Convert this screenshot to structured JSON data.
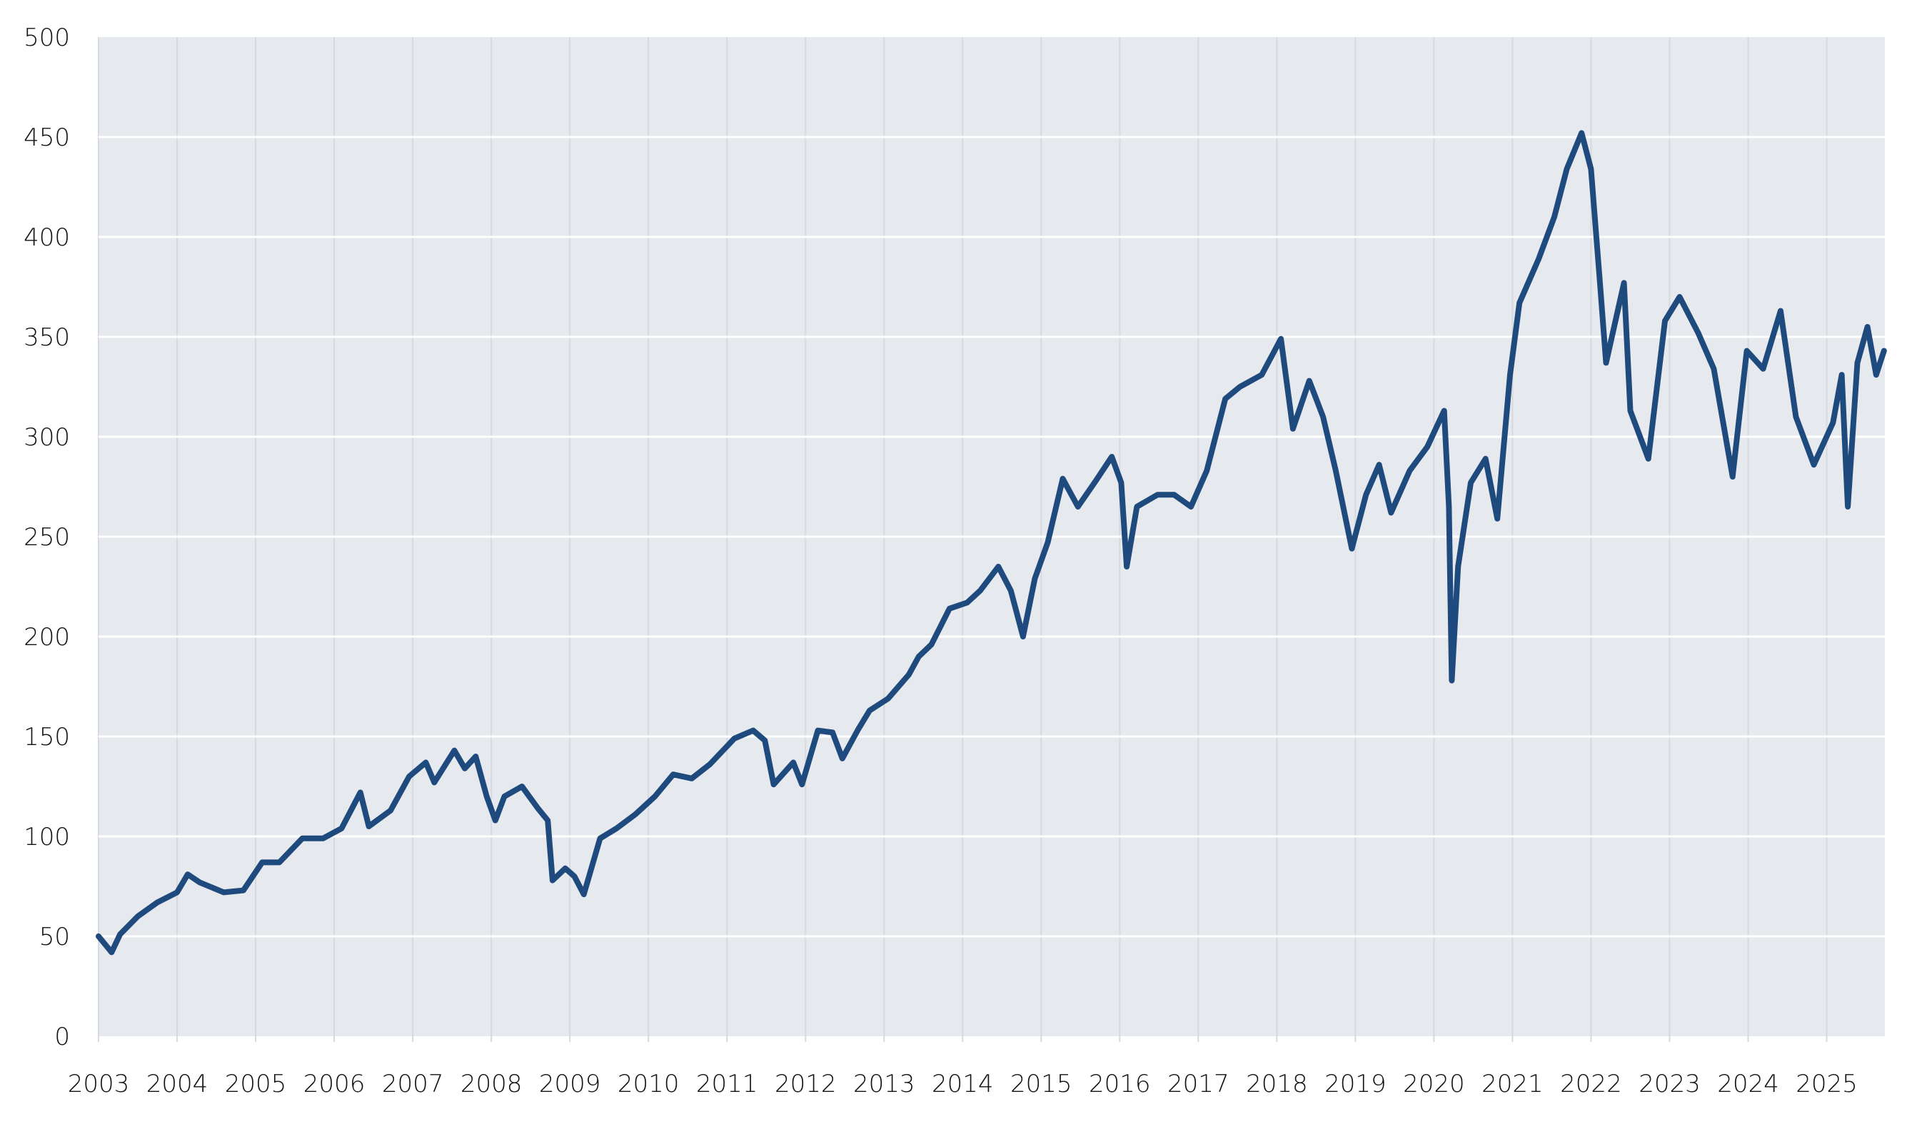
{
  "chart_data": {
    "type": "line",
    "title": "",
    "xlabel": "",
    "ylabel": "",
    "ylim": [
      0,
      500
    ],
    "xlim": [
      "2003-01-01",
      "2025-09-28"
    ],
    "grid": {
      "horizontal": true,
      "vertical": true
    },
    "legend": "none",
    "colors": {
      "line": "#1f4a7e",
      "plot_background": "#e6e9ed",
      "horizontal_grid": "#ffffff",
      "vertical_grid": "#d6dae0"
    },
    "y_ticks": [
      "0",
      "50",
      "100",
      "150",
      "200",
      "250",
      "300",
      "350",
      "400",
      "450",
      "500"
    ],
    "x_ticks": [
      "2003",
      "2004",
      "2005",
      "2006",
      "2007",
      "2008",
      "2009",
      "2010",
      "2011",
      "2012",
      "2013",
      "2014",
      "2015",
      "2016",
      "2017",
      "2018",
      "2019",
      "2020",
      "2021",
      "2022",
      "2023",
      "2024",
      "2025"
    ],
    "series": [
      {
        "points": [
          [
            "2003-01-01",
            50
          ],
          [
            "2003-03-01",
            42
          ],
          [
            "2003-04-10",
            51
          ],
          [
            "2003-07-01",
            60
          ],
          [
            "2003-10-01",
            67
          ],
          [
            "2004-01-01",
            72
          ],
          [
            "2004-02-20",
            81
          ],
          [
            "2004-04-15",
            77
          ],
          [
            "2004-08-05",
            72
          ],
          [
            "2004-11-05",
            73
          ],
          [
            "2005-02-01",
            87
          ],
          [
            "2005-04-20",
            87
          ],
          [
            "2005-08-05",
            99
          ],
          [
            "2005-11-10",
            99
          ],
          [
            "2006-02-05",
            104
          ],
          [
            "2006-05-01",
            122
          ],
          [
            "2006-06-10",
            105
          ],
          [
            "2006-09-20",
            113
          ],
          [
            "2006-12-15",
            130
          ],
          [
            "2007-03-01",
            137
          ],
          [
            "2007-04-10",
            127
          ],
          [
            "2007-07-12",
            143
          ],
          [
            "2007-08-30",
            134
          ],
          [
            "2007-10-20",
            140
          ],
          [
            "2007-12-10",
            120
          ],
          [
            "2008-01-20",
            108
          ],
          [
            "2008-03-01",
            120
          ],
          [
            "2008-05-22",
            125
          ],
          [
            "2008-08-05",
            114
          ],
          [
            "2008-09-20",
            108
          ],
          [
            "2008-10-12",
            78
          ],
          [
            "2008-12-10",
            84
          ],
          [
            "2009-01-22",
            80
          ],
          [
            "2009-03-05",
            71
          ],
          [
            "2009-05-20",
            99
          ],
          [
            "2009-08-05",
            104
          ],
          [
            "2009-11-01",
            111
          ],
          [
            "2010-02-01",
            120
          ],
          [
            "2010-04-25",
            131
          ],
          [
            "2010-07-20",
            129
          ],
          [
            "2010-10-12",
            136
          ],
          [
            "2011-02-05",
            149
          ],
          [
            "2011-05-01",
            153
          ],
          [
            "2011-06-25",
            148
          ],
          [
            "2011-08-05",
            126
          ],
          [
            "2011-11-05",
            137
          ],
          [
            "2011-12-15",
            126
          ],
          [
            "2012-02-28",
            153
          ],
          [
            "2012-05-05",
            152
          ],
          [
            "2012-06-20",
            139
          ],
          [
            "2012-08-30",
            153
          ],
          [
            "2012-10-25",
            163
          ],
          [
            "2013-01-20",
            169
          ],
          [
            "2013-04-25",
            181
          ],
          [
            "2013-06-10",
            190
          ],
          [
            "2013-08-08",
            196
          ],
          [
            "2013-11-01",
            214
          ],
          [
            "2014-01-22",
            217
          ],
          [
            "2014-03-22",
            223
          ],
          [
            "2014-06-15",
            235
          ],
          [
            "2014-08-12",
            223
          ],
          [
            "2014-10-08",
            200
          ],
          [
            "2014-12-02",
            229
          ],
          [
            "2015-02-01",
            247
          ],
          [
            "2015-04-10",
            279
          ],
          [
            "2015-06-20",
            265
          ],
          [
            "2015-09-12",
            278
          ],
          [
            "2015-11-25",
            290
          ],
          [
            "2016-01-08",
            277
          ],
          [
            "2016-02-03",
            235
          ],
          [
            "2016-03-20",
            265
          ],
          [
            "2016-06-25",
            271
          ],
          [
            "2016-09-10",
            271
          ],
          [
            "2016-11-28",
            265
          ],
          [
            "2017-02-10",
            283
          ],
          [
            "2017-05-05",
            319
          ],
          [
            "2017-07-12",
            325
          ],
          [
            "2017-10-22",
            331
          ],
          [
            "2018-01-20",
            349
          ],
          [
            "2018-03-15",
            304
          ],
          [
            "2018-05-30",
            328
          ],
          [
            "2018-08-03",
            310
          ],
          [
            "2018-10-01",
            283
          ],
          [
            "2018-12-15",
            244
          ],
          [
            "2019-02-20",
            271
          ],
          [
            "2019-04-20",
            286
          ],
          [
            "2019-06-15",
            262
          ],
          [
            "2019-09-10",
            283
          ],
          [
            "2019-12-01",
            295
          ],
          [
            "2020-02-18",
            313
          ],
          [
            "2020-03-10",
            265
          ],
          [
            "2020-03-23",
            178
          ],
          [
            "2020-04-22",
            235
          ],
          [
            "2020-06-20",
            277
          ],
          [
            "2020-08-28",
            289
          ],
          [
            "2020-10-22",
            259
          ],
          [
            "2020-12-20",
            331
          ],
          [
            "2021-02-03",
            367
          ],
          [
            "2021-05-01",
            389
          ],
          [
            "2021-07-13",
            410
          ],
          [
            "2021-09-10",
            434
          ],
          [
            "2021-11-18",
            452
          ],
          [
            "2022-01-01",
            434
          ],
          [
            "2022-02-10",
            380
          ],
          [
            "2022-03-10",
            337
          ],
          [
            "2022-06-02",
            377
          ],
          [
            "2022-07-01",
            313
          ],
          [
            "2022-09-24",
            289
          ],
          [
            "2022-12-10",
            358
          ],
          [
            "2023-02-17",
            370
          ],
          [
            "2023-05-12",
            352
          ],
          [
            "2023-07-24",
            334
          ],
          [
            "2023-10-20",
            280
          ],
          [
            "2023-12-25",
            343
          ],
          [
            "2024-03-10",
            334
          ],
          [
            "2024-05-30",
            363
          ],
          [
            "2024-08-10",
            310
          ],
          [
            "2024-11-02",
            286
          ],
          [
            "2025-01-30",
            307
          ],
          [
            "2025-03-10",
            331
          ],
          [
            "2025-04-08",
            265
          ],
          [
            "2025-05-22",
            337
          ],
          [
            "2025-07-08",
            355
          ],
          [
            "2025-08-18",
            331
          ],
          [
            "2025-09-24",
            343
          ]
        ]
      }
    ]
  }
}
